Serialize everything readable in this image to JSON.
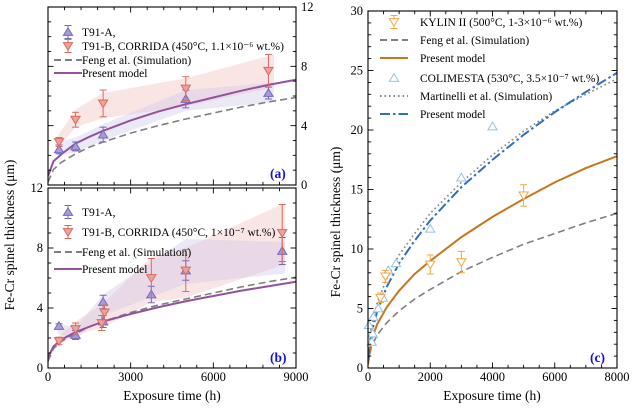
{
  "figure": {
    "background": "#ffffff",
    "panel_letter_color": "#1212dd"
  },
  "chart_data": [
    {
      "id": "a",
      "type": "line+scatter",
      "panel_label": "(a)",
      "title": "",
      "xlabel": "Exposure time (h)",
      "ylabel": "Fe-Cr spinel thickness (μm)",
      "xlim": [
        0,
        9000
      ],
      "ylim": [
        0,
        12
      ],
      "xticks": [
        0,
        3000,
        6000,
        9000
      ],
      "yticks": [
        0,
        4,
        8,
        12
      ],
      "xminor": 600,
      "yminor": 1,
      "xlabels_show": false,
      "ylabels_side": "right",
      "grid": false,
      "legend_position": "upper-left",
      "frame": {
        "l": 48,
        "r": 296,
        "t": 7,
        "b": 185
      },
      "legend_pos": {
        "mx": 68,
        "tx": 82,
        "rows": [
          32,
          46,
          60,
          73
        ]
      },
      "legend": [
        {
          "label": "T91-A,",
          "type": "marker",
          "marker": "up",
          "open": false,
          "err": true,
          "stroke": "#7468bd",
          "fill": "#a89cd8"
        },
        {
          "label": "T91-B, CORRIDA (450°C, 1.1×10⁻⁶ wt.%)",
          "type": "marker",
          "marker": "down",
          "open": false,
          "err": true,
          "stroke": "#d96a60",
          "fill": "#f0a09a"
        },
        {
          "label": "Feng et al. (Simulation)",
          "type": "line",
          "dash": "dash",
          "color": "#7f7f7f"
        },
        {
          "label": "Present model",
          "type": "line",
          "dash": "solid",
          "color": "#94519c"
        }
      ],
      "bands": [
        {
          "color": "#f3c0c0",
          "opacity": 0.42,
          "x": [
            350,
            1000,
            2000,
            5000,
            8200,
            8200,
            5000,
            2000,
            1000,
            350
          ],
          "y": [
            3.3,
            5.1,
            6.2,
            7.2,
            8.8,
            6.6,
            5.3,
            4.5,
            3.9,
            2.45
          ]
        },
        {
          "color": "#ccc5e8",
          "opacity": 0.38,
          "x": [
            350,
            1000,
            2000,
            5000,
            8200,
            8200,
            5000,
            2000,
            1000,
            350
          ],
          "y": [
            2.9,
            3.2,
            4.1,
            6.4,
            6.9,
            5.6,
            5.0,
            3.0,
            2.2,
            2.0
          ]
        }
      ],
      "series": [
        {
          "name": "Feng et al. (Simulation)",
          "kind": "line",
          "dash": "dash",
          "color": "#7f7f7f",
          "width": 1.6,
          "x": [
            0,
            200,
            500,
            1000,
            1500,
            2000,
            3000,
            4000,
            5000,
            6000,
            7000,
            8000,
            9000
          ],
          "y": [
            0.2,
            1.05,
            1.55,
            2.1,
            2.55,
            2.9,
            3.5,
            4.0,
            4.45,
            4.85,
            5.25,
            5.6,
            5.9
          ]
        },
        {
          "name": "Present model",
          "kind": "line",
          "dash": "solid",
          "color": "#94519c",
          "width": 2,
          "x": [
            0,
            200,
            500,
            1000,
            1500,
            2000,
            3000,
            4000,
            5000,
            6000,
            7000,
            8000,
            9000
          ],
          "y": [
            0.6,
            1.6,
            2.1,
            2.8,
            3.25,
            3.65,
            4.35,
            4.95,
            5.45,
            5.9,
            6.35,
            6.75,
            7.1
          ]
        },
        {
          "name": "T91-A",
          "kind": "scatter",
          "marker": "up",
          "open": false,
          "stroke": "#7468bd",
          "fill": "#a89cd8",
          "x": [
            400,
            1000,
            2000,
            5000,
            8000
          ],
          "y": [
            2.4,
            2.6,
            3.4,
            5.8,
            6.2
          ],
          "yerr": [
            0.3,
            0.3,
            0.5,
            0.6,
            0.4
          ]
        },
        {
          "name": "T91-B, CORRIDA (450°C, 1.1×10⁻⁶ wt.%)",
          "kind": "scatter",
          "marker": "down",
          "open": false,
          "stroke": "#d96a60",
          "fill": "#f0a09a",
          "x": [
            400,
            1000,
            2000,
            5000,
            8000
          ],
          "y": [
            2.9,
            4.4,
            5.5,
            6.5,
            7.7
          ],
          "yerr": [
            0.3,
            0.5,
            0.9,
            0.8,
            1.1
          ]
        }
      ]
    },
    {
      "id": "b",
      "type": "line+scatter",
      "panel_label": "(b)",
      "title": "",
      "xlabel": "Exposure time (h)",
      "ylabel": "Fe-Cr spinel thickness (μm)",
      "xlim": [
        0,
        9000
      ],
      "ylim": [
        0,
        12
      ],
      "xticks": [
        0,
        3000,
        6000,
        9000
      ],
      "yticks": [
        0,
        4,
        8,
        12
      ],
      "xminor": 600,
      "yminor": 1,
      "xlabels_show": true,
      "ylabels_side": "left",
      "grid": false,
      "legend_position": "upper-left",
      "frame": {
        "l": 48,
        "r": 296,
        "t": 188,
        "b": 368
      },
      "legend_pos": {
        "mx": 68,
        "tx": 82,
        "rows": [
          212,
          232,
          252,
          269
        ]
      },
      "legend": [
        {
          "label": "T91-A,",
          "type": "marker",
          "marker": "up",
          "open": false,
          "err": true,
          "stroke": "#7468bd",
          "fill": "#a89cd8"
        },
        {
          "label": "T91-B, CORRIDA (450°C, 1×10⁻⁷ wt.%)",
          "type": "marker",
          "marker": "down",
          "open": false,
          "err": true,
          "stroke": "#d96a60",
          "fill": "#f0a09a"
        },
        {
          "label": "Feng et al. (Simulation)",
          "type": "line",
          "dash": "dash",
          "color": "#7f7f7f"
        },
        {
          "label": "Present model",
          "type": "line",
          "dash": "solid",
          "color": "#94519c"
        }
      ],
      "bands": [
        {
          "color": "#f3c0c0",
          "opacity": 0.42,
          "x": [
            350,
            1000,
            2000,
            3750,
            5000,
            8600,
            8600,
            5000,
            3750,
            2000,
            1000,
            350
          ],
          "y": [
            2.1,
            3.1,
            4.3,
            7.4,
            8.0,
            11.0,
            6.9,
            4.7,
            4.4,
            2.7,
            2.2,
            1.5
          ]
        },
        {
          "color": "#ccc5e8",
          "opacity": 0.38,
          "x": [
            350,
            1000,
            2000,
            5000,
            8600,
            8600,
            5000,
            2000,
            1000,
            350
          ],
          "y": [
            3.0,
            2.7,
            4.9,
            8.6,
            8.4,
            6.3,
            5.6,
            3.5,
            1.9,
            2.3
          ]
        }
      ],
      "series": [
        {
          "name": "Feng et al. (Simulation)",
          "kind": "line",
          "dash": "dash",
          "color": "#7f7f7f",
          "width": 1.6,
          "x": [
            0,
            200,
            500,
            1000,
            1500,
            2000,
            3000,
            4000,
            5000,
            6000,
            7000,
            8000,
            9000
          ],
          "y": [
            0.45,
            1.3,
            1.8,
            2.3,
            2.75,
            3.1,
            3.7,
            4.2,
            4.6,
            5.0,
            5.4,
            5.75,
            6.05
          ]
        },
        {
          "name": "Present model",
          "kind": "line",
          "dash": "solid",
          "color": "#94519c",
          "width": 2,
          "x": [
            0,
            200,
            500,
            1000,
            1500,
            2000,
            3000,
            4000,
            5000,
            6000,
            7000,
            8000,
            9000
          ],
          "y": [
            0.7,
            1.45,
            1.9,
            2.4,
            2.75,
            3.1,
            3.6,
            4.05,
            4.45,
            4.8,
            5.15,
            5.45,
            5.75
          ]
        },
        {
          "name": "T91-A",
          "kind": "scatter",
          "marker": "up",
          "open": false,
          "stroke": "#7468bd",
          "fill": "#a89cd8",
          "x": [
            400,
            1000,
            2000,
            2000,
            3750,
            5000,
            8500
          ],
          "y": [
            2.8,
            2.2,
            3.1,
            4.4,
            4.9,
            6.5,
            7.8
          ],
          "yerr": [
            0.15,
            0.3,
            0.4,
            0.45,
            0.55,
            0.65,
            0.9
          ]
        },
        {
          "name": "T91-B, CORRIDA (450°C, 1×10⁻⁷ wt.%)",
          "kind": "scatter",
          "marker": "down",
          "open": false,
          "stroke": "#d96a60",
          "fill": "#f0a09a",
          "x": [
            400,
            1000,
            1950,
            2050,
            3750,
            5000,
            8500
          ],
          "y": [
            1.8,
            2.6,
            3.0,
            3.7,
            6.0,
            6.5,
            9.0
          ],
          "yerr": [
            0.25,
            0.4,
            0.5,
            0.5,
            1.3,
            1.4,
            1.9
          ]
        }
      ]
    },
    {
      "id": "c",
      "type": "line+scatter",
      "panel_label": "(c)",
      "title": "",
      "xlabel": "Exposure time (h)",
      "ylabel": "Fe-Cr spinel thickness (μm)",
      "xlim": [
        0,
        8000
      ],
      "ylim": [
        0,
        30
      ],
      "xticks": [
        0,
        2000,
        4000,
        6000,
        8000
      ],
      "yticks": [
        0,
        5,
        10,
        15,
        20,
        25,
        30
      ],
      "xminor": 500,
      "yminor": 1,
      "xlabels_show": true,
      "ylabels_side": "left",
      "grid": false,
      "legend_position": "upper-left",
      "frame": {
        "l": 368,
        "r": 617,
        "t": 11,
        "b": 368
      },
      "legend_pos": {
        "mx": 394,
        "tx": 420,
        "rows": [
          22,
          40,
          58,
          78,
          96,
          114
        ]
      },
      "legend": [
        {
          "label": "KYLIN II (500°C, 1-3×10⁻⁶ wt.%)",
          "type": "marker",
          "marker": "down",
          "open": true,
          "err": true,
          "stroke": "#f0a842",
          "fill": "#ffffff"
        },
        {
          "label": "Feng et al. (Simulation)",
          "type": "line",
          "dash": "dash",
          "color": "#7f7f7f"
        },
        {
          "label": "Present model",
          "type": "line",
          "dash": "solid",
          "color": "#c5761e"
        },
        {
          "label": "COLIMESTA (530°C, 3.5×10⁻⁷ wt.%)",
          "type": "marker",
          "marker": "up",
          "open": true,
          "err": false,
          "stroke": "#96c2e2",
          "fill": "#ffffff"
        },
        {
          "label": "Martinelli et al. (Simulation)",
          "type": "line",
          "dash": "dot",
          "color": "#888888"
        },
        {
          "label": "Present model",
          "type": "line",
          "dash": "dashdot",
          "color": "#2d6fc0"
        }
      ],
      "bands": [],
      "series": [
        {
          "name": "Feng et al. (Simulation)",
          "kind": "line",
          "dash": "dash",
          "color": "#7f7f7f",
          "width": 1.6,
          "x": [
            0,
            100,
            300,
            600,
            1000,
            1500,
            2000,
            3000,
            4000,
            5000,
            6000,
            7000,
            8000
          ],
          "y": [
            0.3,
            1.7,
            2.8,
            3.8,
            4.8,
            5.8,
            6.6,
            8.1,
            9.3,
            10.4,
            11.3,
            12.2,
            13.0
          ]
        },
        {
          "name": "Present model (KYLIN II)",
          "kind": "line",
          "dash": "solid",
          "color": "#c5761e",
          "width": 2,
          "x": [
            0,
            100,
            300,
            600,
            1000,
            1500,
            2000,
            3000,
            4000,
            5000,
            6000,
            7000,
            8000
          ],
          "y": [
            0.3,
            2.3,
            3.7,
            5.1,
            6.5,
            7.9,
            9.0,
            11.0,
            12.7,
            14.2,
            15.6,
            16.8,
            17.8
          ]
        },
        {
          "name": "Martinelli et al. (Simulation)",
          "kind": "line",
          "dash": "dot",
          "color": "#888888",
          "width": 1.7,
          "x": [
            0,
            100,
            300,
            600,
            1000,
            1500,
            2000,
            3000,
            4000,
            5000,
            6000,
            7000,
            8000
          ],
          "y": [
            0.5,
            3.4,
            5.5,
            7.5,
            9.5,
            11.3,
            13.0,
            15.6,
            17.9,
            19.9,
            21.6,
            23.0,
            24.3
          ]
        },
        {
          "name": "Present model (COLIMESTA)",
          "kind": "line",
          "dash": "dashdot",
          "color": "#2d6fc0",
          "width": 2,
          "x": [
            0,
            100,
            300,
            600,
            1000,
            1500,
            2000,
            3000,
            4000,
            5000,
            6000,
            7000,
            8000
          ],
          "y": [
            0.8,
            2.8,
            4.8,
            6.8,
            8.8,
            10.7,
            12.4,
            15.2,
            17.5,
            19.6,
            21.5,
            23.2,
            24.8
          ]
        },
        {
          "name": "COLIMESTA (530°C, 3.5×10⁻⁷ wt.%)",
          "kind": "scatter",
          "marker": "up",
          "open": true,
          "stroke": "#96c2e2",
          "fill": "#ffffff",
          "x": [
            30,
            120,
            150,
            170,
            330,
            480,
            650,
            900,
            2000,
            3000,
            4000
          ],
          "y": [
            3.6,
            2.2,
            2.9,
            4.3,
            5.0,
            5.9,
            8.2,
            8.8,
            11.7,
            16.0,
            20.3
          ]
        },
        {
          "name": "KYLIN II (500°C, 1-3×10⁻⁶ wt.%)",
          "kind": "scatter",
          "marker": "down",
          "open": true,
          "stroke": "#f0a842",
          "fill": "#ffffff",
          "x": [
            400,
            560,
            2000,
            3000,
            5000
          ],
          "y": [
            5.9,
            7.7,
            8.7,
            8.9,
            14.5
          ],
          "yerr": [
            0.4,
            0.5,
            0.8,
            0.9,
            0.9
          ]
        }
      ]
    }
  ]
}
